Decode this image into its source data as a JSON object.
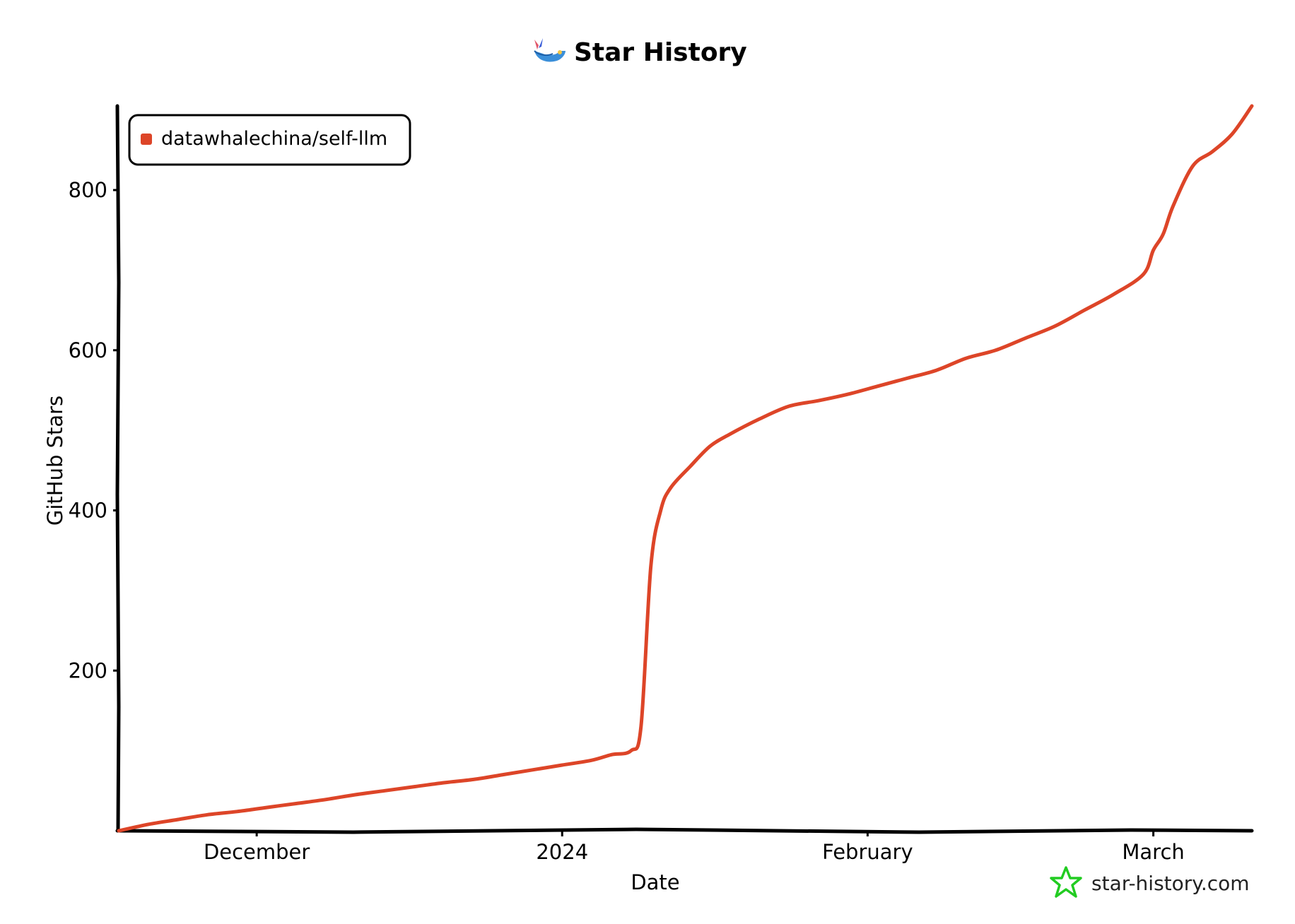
{
  "chart_data": {
    "type": "line",
    "title": "Star History",
    "xlabel": "Date",
    "ylabel": "GitHub Stars",
    "x_ticks": [
      {
        "label": "December",
        "date": "2023-12-01"
      },
      {
        "label": "2024",
        "date": "2024-01-01"
      },
      {
        "label": "February",
        "date": "2024-02-01"
      },
      {
        "label": "March",
        "date": "2024-03-01"
      }
    ],
    "y_ticks": [
      200,
      400,
      600,
      800
    ],
    "xlim": [
      "2023-11-17",
      "2024-03-11"
    ],
    "ylim": [
      0,
      905
    ],
    "grid": false,
    "legend_position": "top-left",
    "series": [
      {
        "name": "datawhalechina/self-llm",
        "color": "#dd4528",
        "points": [
          [
            "2023-11-17",
            0
          ],
          [
            "2023-11-20",
            8
          ],
          [
            "2023-11-23",
            14
          ],
          [
            "2023-11-26",
            20
          ],
          [
            "2023-11-29",
            24
          ],
          [
            "2023-12-02",
            29
          ],
          [
            "2023-12-05",
            34
          ],
          [
            "2023-12-08",
            39
          ],
          [
            "2023-12-11",
            45
          ],
          [
            "2023-12-14",
            50
          ],
          [
            "2023-12-17",
            55
          ],
          [
            "2023-12-20",
            60
          ],
          [
            "2023-12-23",
            64
          ],
          [
            "2023-12-26",
            70
          ],
          [
            "2023-12-29",
            76
          ],
          [
            "2024-01-01",
            82
          ],
          [
            "2024-01-04",
            88
          ],
          [
            "2024-01-06",
            95
          ],
          [
            "2024-01-08",
            100
          ],
          [
            "2024-01-09",
            130
          ],
          [
            "2024-01-10",
            330
          ],
          [
            "2024-01-11",
            400
          ],
          [
            "2024-01-12",
            428
          ],
          [
            "2024-01-14",
            455
          ],
          [
            "2024-01-16",
            480
          ],
          [
            "2024-01-18",
            495
          ],
          [
            "2024-01-21",
            514
          ],
          [
            "2024-01-24",
            530
          ],
          [
            "2024-01-27",
            537
          ],
          [
            "2024-01-30",
            545
          ],
          [
            "2024-02-02",
            555
          ],
          [
            "2024-02-05",
            565
          ],
          [
            "2024-02-08",
            575
          ],
          [
            "2024-02-11",
            590
          ],
          [
            "2024-02-14",
            600
          ],
          [
            "2024-02-17",
            615
          ],
          [
            "2024-02-20",
            630
          ],
          [
            "2024-02-23",
            650
          ],
          [
            "2024-02-26",
            670
          ],
          [
            "2024-02-29",
            695
          ],
          [
            "2024-03-01",
            725
          ],
          [
            "2024-03-02",
            745
          ],
          [
            "2024-03-03",
            780
          ],
          [
            "2024-03-05",
            830
          ],
          [
            "2024-03-07",
            848
          ],
          [
            "2024-03-09",
            870
          ],
          [
            "2024-03-11",
            905
          ]
        ]
      }
    ]
  },
  "watermark": {
    "text": "star-history.com",
    "icon": "star-icon",
    "color": "#22cc22"
  },
  "logo": {
    "icon": "whale-logo-icon"
  }
}
